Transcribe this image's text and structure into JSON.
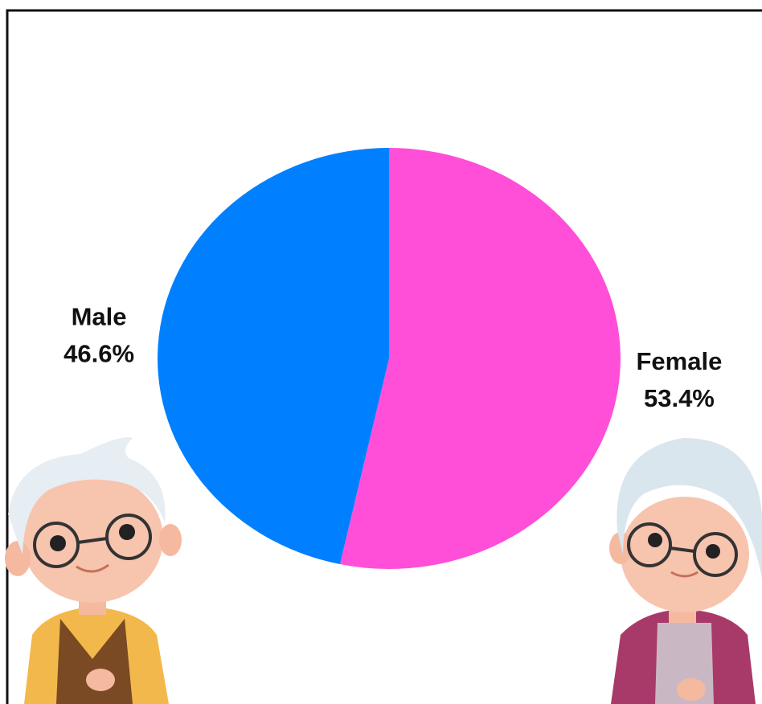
{
  "chart_data": {
    "type": "pie",
    "categories": [
      "Female",
      "Male"
    ],
    "values": [
      53.4,
      46.6
    ],
    "value_labels": [
      "53.4%",
      "46.6%"
    ],
    "colors": [
      "#ff4fd8",
      "#0080ff"
    ]
  }
}
